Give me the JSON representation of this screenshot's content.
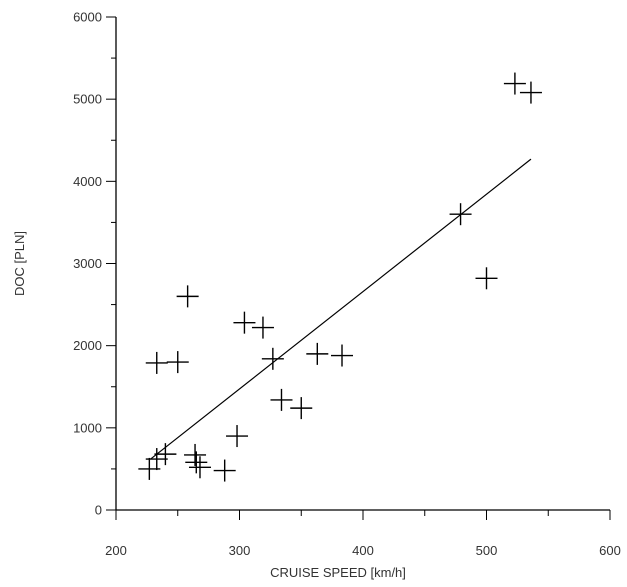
{
  "chart_data": {
    "type": "scatter",
    "xlabel": "CRUISE SPEED [km/h]",
    "ylabel": "DOC [PLN]",
    "xlim": [
      200,
      600
    ],
    "ylim": [
      0,
      6000
    ],
    "xticks": [
      200,
      300,
      400,
      500,
      600
    ],
    "yticks": [
      0,
      1000,
      2000,
      3000,
      4000,
      5000,
      6000
    ],
    "grid": false,
    "colors": {
      "axis": "#000000",
      "marker": "#000000",
      "trendline": "#000000",
      "text": "#333333"
    },
    "series": [
      {
        "marker": "plus",
        "points": [
          {
            "x": 227,
            "y": 500
          },
          {
            "x": 233,
            "y": 620
          },
          {
            "x": 233,
            "y": 1790
          },
          {
            "x": 240,
            "y": 680
          },
          {
            "x": 250,
            "y": 1800
          },
          {
            "x": 258,
            "y": 2600
          },
          {
            "x": 264,
            "y": 670
          },
          {
            "x": 265,
            "y": 580
          },
          {
            "x": 268,
            "y": 520
          },
          {
            "x": 288,
            "y": 480
          },
          {
            "x": 298,
            "y": 900
          },
          {
            "x": 304,
            "y": 2280
          },
          {
            "x": 319,
            "y": 2220
          },
          {
            "x": 327,
            "y": 1840
          },
          {
            "x": 334,
            "y": 1340
          },
          {
            "x": 350,
            "y": 1240
          },
          {
            "x": 363,
            "y": 1900
          },
          {
            "x": 383,
            "y": 1880
          },
          {
            "x": 479,
            "y": 3600
          },
          {
            "x": 500,
            "y": 2820
          },
          {
            "x": 523,
            "y": 5190
          },
          {
            "x": 536,
            "y": 5080
          }
        ]
      }
    ],
    "trendline": {
      "x": [
        228,
        536
      ],
      "y": [
        620,
        4270
      ]
    }
  }
}
